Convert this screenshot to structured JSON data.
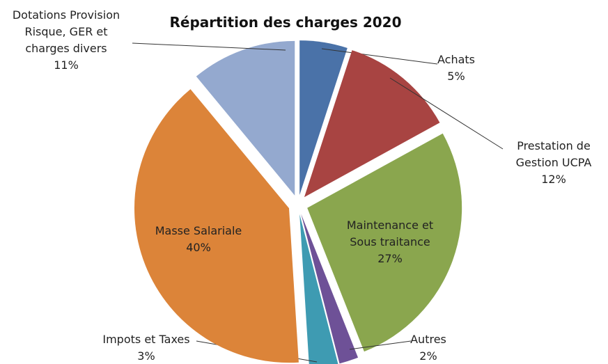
{
  "chart_data": {
    "type": "pie",
    "title": "Répartition des charges 2020",
    "categories": [
      "Achats",
      "Prestation de Gestion UCPA",
      "Maintenance et Sous traitance",
      "Autres",
      "Impots et Taxes",
      "Masse Salariale",
      "Dotations Provision Risque, GER et charges divers"
    ],
    "values": [
      5,
      12,
      27,
      2,
      3,
      40,
      11
    ],
    "value_labels": [
      "5%",
      "12%",
      "27%",
      "2%",
      "3%",
      "40%",
      "11%"
    ],
    "colors": [
      "#4a72a8",
      "#a84442",
      "#8aa64e",
      "#6e5197",
      "#3e9bb2",
      "#dc8439",
      "#94a9cf"
    ]
  }
}
